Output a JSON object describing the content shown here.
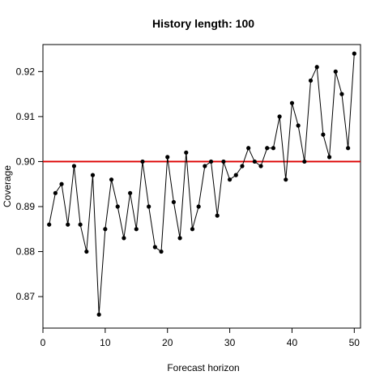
{
  "chart_data": {
    "type": "line",
    "title": "History length: 100",
    "xlabel": "Forecast horizon",
    "ylabel": "Coverage",
    "xlim": [
      0,
      51
    ],
    "ylim": [
      0.863,
      0.926
    ],
    "xticks": [
      0,
      10,
      20,
      30,
      40,
      50
    ],
    "xtick_labels": [
      "0",
      "10",
      "20",
      "30",
      "40",
      "50"
    ],
    "yticks": [
      0.87,
      0.88,
      0.89,
      0.9,
      0.91,
      0.92
    ],
    "ytick_labels": [
      "0.87",
      "0.88",
      "0.89",
      "0.90",
      "0.91",
      "0.92"
    ],
    "grid": false,
    "reference_line": {
      "y": 0.9,
      "color": "#dd0000"
    },
    "series_color": "#000000",
    "x": [
      1,
      2,
      3,
      4,
      5,
      6,
      7,
      8,
      9,
      10,
      11,
      12,
      13,
      14,
      15,
      16,
      17,
      18,
      19,
      20,
      21,
      22,
      23,
      24,
      25,
      26,
      27,
      28,
      29,
      30,
      31,
      32,
      33,
      34,
      35,
      36,
      37,
      38,
      39,
      40,
      41,
      42,
      43,
      44,
      45,
      46,
      47,
      48,
      49,
      50
    ],
    "y": [
      0.886,
      0.893,
      0.895,
      0.886,
      0.899,
      0.886,
      0.88,
      0.897,
      0.866,
      0.885,
      0.896,
      0.89,
      0.883,
      0.893,
      0.885,
      0.9,
      0.89,
      0.881,
      0.88,
      0.901,
      0.891,
      0.883,
      0.902,
      0.885,
      0.89,
      0.899,
      0.9,
      0.888,
      0.9,
      0.896,
      0.897,
      0.899,
      0.903,
      0.9,
      0.899,
      0.903,
      0.903,
      0.91,
      0.896,
      0.913,
      0.908,
      0.9,
      0.918,
      0.921,
      0.906,
      0.901,
      0.92,
      0.915,
      0.903,
      0.924
    ]
  }
}
